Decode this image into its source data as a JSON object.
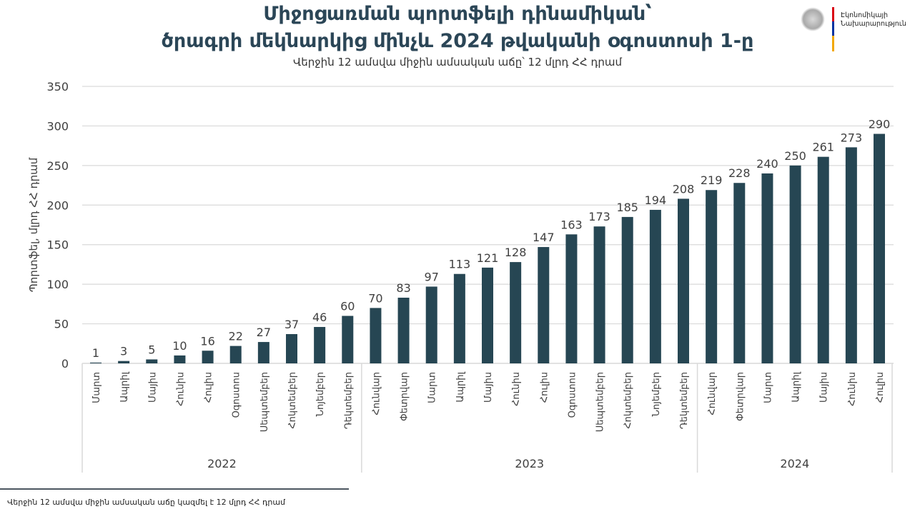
{
  "header": {
    "title_line1": "Միջոցառման պորտֆելի դինամիկան՝",
    "title_line2": "ծրագրի մեկնարկից մինչև 2024 թվականի օգոստոսի 1-ը",
    "subtitle": "Վերջին 12 ամսվա միջին ամսական աճը՝ 12 մլրդ ՀՀ դրամ"
  },
  "logo": {
    "icon": "armenia-coat-of-arms-icon",
    "line1": "Էկոնոմիկայի",
    "line2": "Նախարարություն",
    "flag_colors": [
      "#d90012",
      "#0033a0",
      "#f2a800"
    ]
  },
  "footer": {
    "note": "Վերջին 12 ամսվա միջին ամսական աճը կազմել է 12 մլրդ ՀՀ դրամ"
  },
  "colors": {
    "bar": "#264653",
    "grid": "#d9d9d9",
    "text": "#404040"
  },
  "chart_data": {
    "type": "bar",
    "title": "Միջոցառման պորտֆելի դինամիկան՝ ծրագրի մեկնարկից մինչև 2024 թվականի օգոստոսի 1-ը",
    "subtitle": "Վերջին 12 ամսվա միջին ամսական աճը՝ 12 մլրդ ՀՀ դրամ",
    "xlabel": "",
    "ylabel": "Պորտֆել, մլրդ ՀՀ դրամ",
    "ylim": [
      0,
      350
    ],
    "yticks": [
      0,
      50,
      100,
      150,
      200,
      250,
      300,
      350
    ],
    "grid": true,
    "legend": "none",
    "categories": [
      "Մարտ",
      "Ապրիլ",
      "Մայիս",
      "Հունիս",
      "Հուլիս",
      "Օգոստոս",
      "Սեպտեմբեր",
      "Հոկտեմբեր",
      "Նոյեմբեր",
      "Դեկտեմբեր",
      "Հունվար",
      "Փետրվար",
      "Մարտ",
      "Ապրիլ",
      "Մայիս",
      "Հունիս",
      "Հուլիս",
      "Օգոստոս",
      "Սեպտեմբեր",
      "Հոկտեմբեր",
      "Նոյեմբեր",
      "Դեկտեմբեր",
      "Հունվար",
      "Փետրվար",
      "Մարտ",
      "Ապրիլ",
      "Մայիս",
      "Հունիս",
      "Հուլիս"
    ],
    "groups": [
      {
        "label": "2022",
        "count": 10
      },
      {
        "label": "2023",
        "count": 12
      },
      {
        "label": "2024",
        "count": 7
      }
    ],
    "values": [
      1,
      3,
      5,
      10,
      16,
      22,
      27,
      37,
      46,
      60,
      70,
      83,
      97,
      113,
      121,
      128,
      147,
      163,
      173,
      185,
      194,
      208,
      219,
      228,
      240,
      250,
      261,
      273,
      290
    ]
  }
}
